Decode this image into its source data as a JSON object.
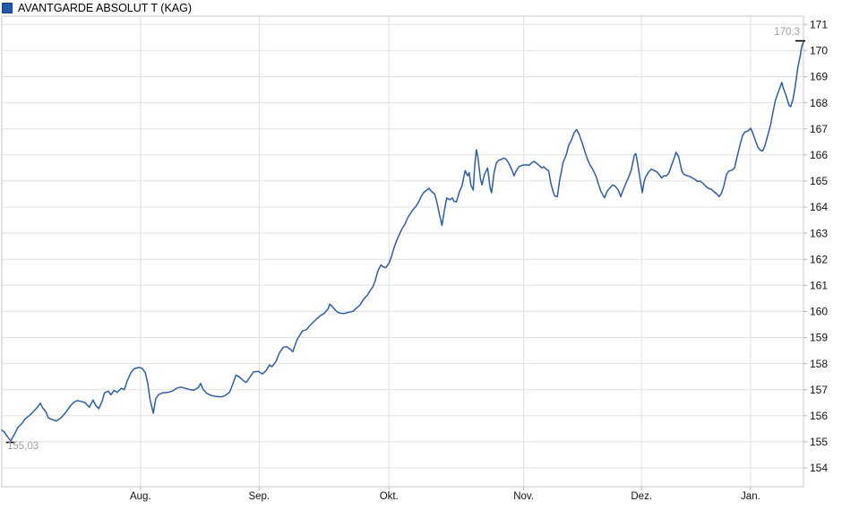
{
  "legend": {
    "title": "AVANTGARDE ABSOLUT T (KAG)",
    "marker_fill": "#2458a8",
    "marker_border": "#15417e"
  },
  "chart_data": {
    "type": "line",
    "title": "AVANTGARDE ABSOLUT T (KAG)",
    "grid": true,
    "legend_position": "top-left",
    "line_color": "#2d5da7",
    "grid_color": "#e0e0e0",
    "border_color": "#c9c9c9",
    "axis_text_color": "#111111",
    "y_axis": {
      "min": 154,
      "max": 171,
      "step": 1,
      "side": "right",
      "labels": [
        "154",
        "155",
        "156",
        "157",
        "158",
        "159",
        "160",
        "161",
        "162",
        "163",
        "164",
        "165",
        "166",
        "167",
        "168",
        "169",
        "170",
        "171"
      ]
    },
    "x_axis": {
      "ticks": [
        {
          "label": "Aug.",
          "pos": 0.173
        },
        {
          "label": "Sep.",
          "pos": 0.321
        },
        {
          "label": "Okt.",
          "pos": 0.483
        },
        {
          "label": "Nov.",
          "pos": 0.651
        },
        {
          "label": "Dez.",
          "pos": 0.798
        },
        {
          "label": "Jan.",
          "pos": 0.934
        }
      ]
    },
    "annotations": {
      "label_color": "#a0a0a0",
      "marker_color": "#000000",
      "start": {
        "label": "155,03",
        "x": 0.011,
        "value": 155.03
      },
      "end": {
        "label": "170,3",
        "x": 1.0,
        "value": 170.32
      }
    },
    "series": [
      {
        "name": "AVANTGARDE ABSOLUT T (KAG)",
        "color": "#2d5da7",
        "points": [
          [
            0.0,
            155.45
          ],
          [
            0.003,
            155.38
          ],
          [
            0.007,
            155.2
          ],
          [
            0.011,
            155.03
          ],
          [
            0.016,
            155.3
          ],
          [
            0.02,
            155.55
          ],
          [
            0.025,
            155.7
          ],
          [
            0.029,
            155.88
          ],
          [
            0.035,
            156.02
          ],
          [
            0.04,
            156.18
          ],
          [
            0.045,
            156.35
          ],
          [
            0.048,
            156.48
          ],
          [
            0.051,
            156.3
          ],
          [
            0.055,
            156.15
          ],
          [
            0.058,
            155.92
          ],
          [
            0.063,
            155.85
          ],
          [
            0.068,
            155.8
          ],
          [
            0.074,
            155.92
          ],
          [
            0.079,
            156.1
          ],
          [
            0.085,
            156.35
          ],
          [
            0.089,
            156.5
          ],
          [
            0.094,
            156.58
          ],
          [
            0.099,
            156.55
          ],
          [
            0.104,
            156.5
          ],
          [
            0.109,
            156.33
          ],
          [
            0.114,
            156.6
          ],
          [
            0.117,
            156.4
          ],
          [
            0.121,
            156.27
          ],
          [
            0.125,
            156.55
          ],
          [
            0.128,
            156.88
          ],
          [
            0.133,
            156.94
          ],
          [
            0.136,
            156.8
          ],
          [
            0.14,
            156.97
          ],
          [
            0.144,
            156.9
          ],
          [
            0.149,
            157.05
          ],
          [
            0.153,
            157.0
          ],
          [
            0.156,
            157.3
          ],
          [
            0.161,
            157.65
          ],
          [
            0.165,
            157.8
          ],
          [
            0.171,
            157.85
          ],
          [
            0.175,
            157.82
          ],
          [
            0.179,
            157.65
          ],
          [
            0.182,
            157.25
          ],
          [
            0.185,
            156.6
          ],
          [
            0.189,
            156.1
          ],
          [
            0.192,
            156.65
          ],
          [
            0.196,
            156.82
          ],
          [
            0.201,
            156.88
          ],
          [
            0.208,
            156.9
          ],
          [
            0.213,
            156.95
          ],
          [
            0.218,
            157.05
          ],
          [
            0.223,
            157.1
          ],
          [
            0.229,
            157.05
          ],
          [
            0.235,
            157.0
          ],
          [
            0.24,
            156.98
          ],
          [
            0.245,
            157.08
          ],
          [
            0.248,
            157.24
          ],
          [
            0.251,
            157.02
          ],
          [
            0.256,
            156.85
          ],
          [
            0.261,
            156.78
          ],
          [
            0.267,
            156.74
          ],
          [
            0.273,
            156.72
          ],
          [
            0.278,
            156.76
          ],
          [
            0.284,
            156.9
          ],
          [
            0.288,
            157.2
          ],
          [
            0.292,
            157.55
          ],
          [
            0.296,
            157.5
          ],
          [
            0.301,
            157.35
          ],
          [
            0.305,
            157.28
          ],
          [
            0.308,
            157.42
          ],
          [
            0.314,
            157.68
          ],
          [
            0.32,
            157.7
          ],
          [
            0.325,
            157.6
          ],
          [
            0.33,
            157.75
          ],
          [
            0.334,
            157.95
          ],
          [
            0.337,
            157.88
          ],
          [
            0.342,
            158.08
          ],
          [
            0.346,
            158.4
          ],
          [
            0.351,
            158.62
          ],
          [
            0.355,
            158.65
          ],
          [
            0.36,
            158.55
          ],
          [
            0.363,
            158.45
          ],
          [
            0.368,
            158.9
          ],
          [
            0.371,
            159.05
          ],
          [
            0.375,
            159.25
          ],
          [
            0.38,
            159.3
          ],
          [
            0.384,
            159.45
          ],
          [
            0.389,
            159.6
          ],
          [
            0.393,
            159.72
          ],
          [
            0.398,
            159.85
          ],
          [
            0.402,
            159.92
          ],
          [
            0.407,
            160.1
          ],
          [
            0.409,
            160.28
          ],
          [
            0.412,
            160.2
          ],
          [
            0.416,
            160.05
          ],
          [
            0.42,
            159.95
          ],
          [
            0.425,
            159.92
          ],
          [
            0.429,
            159.93
          ],
          [
            0.433,
            159.97
          ],
          [
            0.438,
            160.0
          ],
          [
            0.442,
            160.12
          ],
          [
            0.447,
            160.25
          ],
          [
            0.451,
            160.45
          ],
          [
            0.456,
            160.62
          ],
          [
            0.459,
            160.78
          ],
          [
            0.463,
            160.95
          ],
          [
            0.466,
            161.2
          ],
          [
            0.469,
            161.55
          ],
          [
            0.473,
            161.78
          ],
          [
            0.476,
            161.7
          ],
          [
            0.479,
            161.68
          ],
          [
            0.483,
            161.85
          ],
          [
            0.486,
            162.1
          ],
          [
            0.489,
            162.42
          ],
          [
            0.493,
            162.75
          ],
          [
            0.496,
            162.95
          ],
          [
            0.499,
            163.15
          ],
          [
            0.503,
            163.35
          ],
          [
            0.506,
            163.57
          ],
          [
            0.509,
            163.73
          ],
          [
            0.513,
            163.9
          ],
          [
            0.516,
            164.0
          ],
          [
            0.52,
            164.2
          ],
          [
            0.523,
            164.4
          ],
          [
            0.526,
            164.55
          ],
          [
            0.53,
            164.65
          ],
          [
            0.533,
            164.72
          ],
          [
            0.536,
            164.6
          ],
          [
            0.54,
            164.5
          ],
          [
            0.543,
            164.15
          ],
          [
            0.546,
            163.7
          ],
          [
            0.549,
            163.3
          ],
          [
            0.552,
            163.85
          ],
          [
            0.555,
            164.35
          ],
          [
            0.559,
            164.28
          ],
          [
            0.562,
            164.35
          ],
          [
            0.564,
            164.22
          ],
          [
            0.567,
            164.2
          ],
          [
            0.571,
            164.6
          ],
          [
            0.574,
            164.8
          ],
          [
            0.578,
            165.4
          ],
          [
            0.581,
            165.2
          ],
          [
            0.583,
            165.32
          ],
          [
            0.585,
            164.85
          ],
          [
            0.588,
            164.65
          ],
          [
            0.59,
            165.6
          ],
          [
            0.592,
            166.2
          ],
          [
            0.594,
            165.9
          ],
          [
            0.597,
            165.1
          ],
          [
            0.599,
            164.85
          ],
          [
            0.602,
            165.25
          ],
          [
            0.606,
            165.5
          ],
          [
            0.609,
            164.75
          ],
          [
            0.611,
            164.55
          ],
          [
            0.614,
            165.3
          ],
          [
            0.617,
            165.7
          ],
          [
            0.62,
            165.8
          ],
          [
            0.623,
            165.82
          ],
          [
            0.626,
            165.88
          ],
          [
            0.629,
            165.84
          ],
          [
            0.632,
            165.7
          ],
          [
            0.636,
            165.45
          ],
          [
            0.639,
            165.2
          ],
          [
            0.641,
            165.35
          ],
          [
            0.645,
            165.55
          ],
          [
            0.649,
            165.6
          ],
          [
            0.654,
            165.62
          ],
          [
            0.658,
            165.6
          ],
          [
            0.661,
            165.7
          ],
          [
            0.664,
            165.75
          ],
          [
            0.667,
            165.68
          ],
          [
            0.67,
            165.6
          ],
          [
            0.674,
            165.5
          ],
          [
            0.676,
            165.55
          ],
          [
            0.679,
            165.45
          ],
          [
            0.682,
            165.4
          ],
          [
            0.685,
            164.9
          ],
          [
            0.688,
            164.55
          ],
          [
            0.69,
            164.42
          ],
          [
            0.693,
            164.4
          ],
          [
            0.696,
            165.05
          ],
          [
            0.698,
            165.35
          ],
          [
            0.7,
            165.7
          ],
          [
            0.704,
            166.0
          ],
          [
            0.707,
            166.35
          ],
          [
            0.711,
            166.6
          ],
          [
            0.714,
            166.85
          ],
          [
            0.717,
            166.97
          ],
          [
            0.72,
            166.8
          ],
          [
            0.724,
            166.45
          ],
          [
            0.727,
            166.15
          ],
          [
            0.731,
            165.8
          ],
          [
            0.734,
            165.6
          ],
          [
            0.737,
            165.45
          ],
          [
            0.741,
            165.2
          ],
          [
            0.744,
            164.9
          ],
          [
            0.747,
            164.62
          ],
          [
            0.752,
            164.35
          ],
          [
            0.755,
            164.6
          ],
          [
            0.759,
            164.75
          ],
          [
            0.762,
            164.85
          ],
          [
            0.765,
            164.8
          ],
          [
            0.769,
            164.65
          ],
          [
            0.772,
            164.4
          ],
          [
            0.775,
            164.65
          ],
          [
            0.779,
            164.95
          ],
          [
            0.782,
            165.15
          ],
          [
            0.785,
            165.4
          ],
          [
            0.789,
            166.0
          ],
          [
            0.791,
            166.05
          ],
          [
            0.793,
            165.7
          ],
          [
            0.796,
            165.1
          ],
          [
            0.799,
            164.55
          ],
          [
            0.801,
            164.95
          ],
          [
            0.803,
            165.15
          ],
          [
            0.807,
            165.35
          ],
          [
            0.81,
            165.45
          ],
          [
            0.813,
            165.42
          ],
          [
            0.817,
            165.35
          ],
          [
            0.82,
            165.25
          ],
          [
            0.823,
            165.12
          ],
          [
            0.826,
            165.2
          ],
          [
            0.829,
            165.2
          ],
          [
            0.832,
            165.3
          ],
          [
            0.836,
            165.65
          ],
          [
            0.839,
            165.9
          ],
          [
            0.841,
            166.1
          ],
          [
            0.844,
            165.95
          ],
          [
            0.846,
            165.7
          ],
          [
            0.848,
            165.4
          ],
          [
            0.851,
            165.25
          ],
          [
            0.855,
            165.2
          ],
          [
            0.858,
            165.18
          ],
          [
            0.861,
            165.12
          ],
          [
            0.865,
            165.05
          ],
          [
            0.868,
            164.98
          ],
          [
            0.871,
            165.0
          ],
          [
            0.875,
            164.9
          ],
          [
            0.878,
            164.8
          ],
          [
            0.881,
            164.72
          ],
          [
            0.885,
            164.68
          ],
          [
            0.888,
            164.6
          ],
          [
            0.892,
            164.5
          ],
          [
            0.895,
            164.4
          ],
          [
            0.898,
            164.55
          ],
          [
            0.901,
            164.85
          ],
          [
            0.904,
            165.25
          ],
          [
            0.907,
            165.38
          ],
          [
            0.911,
            165.42
          ],
          [
            0.914,
            165.5
          ],
          [
            0.917,
            165.9
          ],
          [
            0.921,
            166.4
          ],
          [
            0.924,
            166.75
          ],
          [
            0.927,
            166.88
          ],
          [
            0.931,
            166.92
          ],
          [
            0.934,
            167.02
          ],
          [
            0.936,
            166.9
          ],
          [
            0.94,
            166.55
          ],
          [
            0.943,
            166.3
          ],
          [
            0.946,
            166.18
          ],
          [
            0.949,
            166.15
          ],
          [
            0.952,
            166.35
          ],
          [
            0.955,
            166.7
          ],
          [
            0.959,
            167.15
          ],
          [
            0.962,
            167.65
          ],
          [
            0.965,
            168.1
          ],
          [
            0.969,
            168.45
          ],
          [
            0.971,
            168.6
          ],
          [
            0.973,
            168.78
          ],
          [
            0.975,
            168.55
          ],
          [
            0.978,
            168.3
          ],
          [
            0.98,
            168.1
          ],
          [
            0.982,
            167.9
          ],
          [
            0.984,
            167.85
          ],
          [
            0.987,
            168.15
          ],
          [
            0.989,
            168.5
          ],
          [
            0.991,
            168.9
          ],
          [
            0.993,
            169.35
          ],
          [
            0.996,
            169.8
          ],
          [
            0.997,
            170.0
          ],
          [
            0.998,
            170.15
          ],
          [
            0.999,
            170.25
          ],
          [
            1.0,
            170.32
          ]
        ]
      }
    ]
  }
}
